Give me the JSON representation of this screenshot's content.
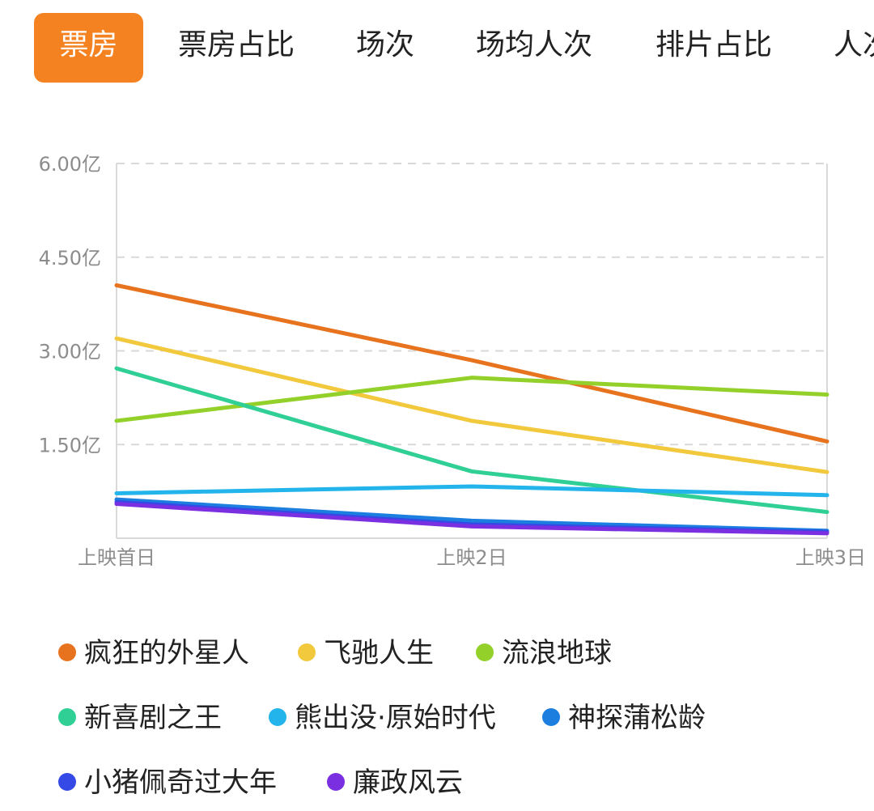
{
  "tabs": [
    {
      "label": "票房",
      "active": true
    },
    {
      "label": "票房占比",
      "active": false
    },
    {
      "label": "场次",
      "active": false
    },
    {
      "label": "场均人次",
      "active": false
    },
    {
      "label": "排片占比",
      "active": false
    },
    {
      "label": "人次",
      "active": false
    }
  ],
  "colors": {
    "accent": "#f58220",
    "grid": "#d9d9d9",
    "axis_text": "#8c8c8c"
  },
  "chart_data": {
    "type": "line",
    "x": [
      "上映首日",
      "上映2日",
      "上映3日"
    ],
    "ylim": [
      0,
      6.0
    ],
    "yticks": [
      1.5,
      3.0,
      4.5,
      6.0
    ],
    "ytick_labels": [
      "1.50亿",
      "3.00亿",
      "4.50亿",
      "6.00亿"
    ],
    "grid": true,
    "legend_position": "bottom",
    "series": [
      {
        "name": "疯狂的外星人",
        "color": "#e8731f",
        "values": [
          4.05,
          2.85,
          1.55
        ]
      },
      {
        "name": "飞驰人生",
        "color": "#f2c83c",
        "values": [
          3.2,
          1.88,
          1.06
        ]
      },
      {
        "name": "流浪地球",
        "color": "#93d02a",
        "values": [
          1.88,
          2.57,
          2.3
        ]
      },
      {
        "name": "新喜剧之王",
        "color": "#2fcf95",
        "values": [
          2.72,
          1.07,
          0.42
        ]
      },
      {
        "name": "熊出没·原始时代",
        "color": "#22b4ea",
        "values": [
          0.72,
          0.83,
          0.69
        ]
      },
      {
        "name": "神探蒲松龄",
        "color": "#1c7fe0",
        "values": [
          0.62,
          0.28,
          0.12
        ]
      },
      {
        "name": "小猪佩奇过大年",
        "color": "#3549e6",
        "values": [
          0.58,
          0.22,
          0.1
        ]
      },
      {
        "name": "廉政风云",
        "color": "#7a2fe0",
        "values": [
          0.55,
          0.19,
          0.08
        ]
      }
    ]
  }
}
